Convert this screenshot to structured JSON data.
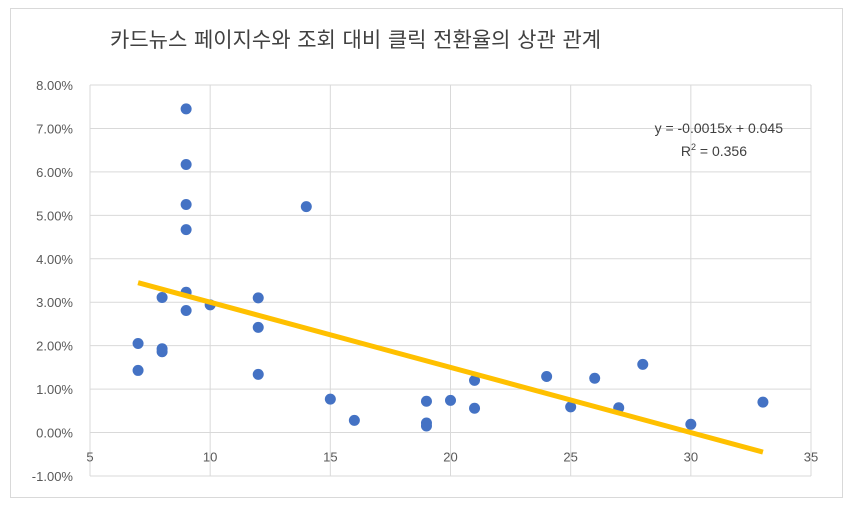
{
  "chart_data": {
    "type": "scatter",
    "title": "카드뉴스 페이지수와 조회 대비 클릭 전환율의 상관 관계",
    "xlabel": "",
    "ylabel": "",
    "xlim": [
      5,
      35
    ],
    "ylim": [
      -0.01,
      0.08
    ],
    "x_ticks": [
      5,
      10,
      15,
      20,
      25,
      30,
      35
    ],
    "x_tick_labels": [
      "5",
      "10",
      "15",
      "20",
      "25",
      "30",
      "35"
    ],
    "y_ticks": [
      -0.01,
      0,
      0.01,
      0.02,
      0.03,
      0.04,
      0.05,
      0.06,
      0.07,
      0.08
    ],
    "y_tick_labels": [
      "-1.00%",
      "0.00%",
      "1.00%",
      "2.00%",
      "3.00%",
      "4.00%",
      "5.00%",
      "6.00%",
      "7.00%",
      "8.00%"
    ],
    "grid": "vertical and horizontal",
    "legend": "none",
    "point_color": "#4472C4",
    "trendline_color": "#FFC000",
    "points": [
      {
        "x": 7,
        "y": 0.0205
      },
      {
        "x": 7,
        "y": 0.0143
      },
      {
        "x": 8,
        "y": 0.0311
      },
      {
        "x": 8,
        "y": 0.0193
      },
      {
        "x": 8,
        "y": 0.0186
      },
      {
        "x": 9,
        "y": 0.0745
      },
      {
        "x": 9,
        "y": 0.0617
      },
      {
        "x": 9,
        "y": 0.0525
      },
      {
        "x": 9,
        "y": 0.0467
      },
      {
        "x": 9,
        "y": 0.0323
      },
      {
        "x": 9,
        "y": 0.0281
      },
      {
        "x": 10,
        "y": 0.0294
      },
      {
        "x": 12,
        "y": 0.031
      },
      {
        "x": 12,
        "y": 0.0242
      },
      {
        "x": 12,
        "y": 0.0134
      },
      {
        "x": 14,
        "y": 0.052
      },
      {
        "x": 15,
        "y": 0.0077
      },
      {
        "x": 16,
        "y": 0.0028
      },
      {
        "x": 19,
        "y": 0.0072
      },
      {
        "x": 19,
        "y": 0.0022
      },
      {
        "x": 19,
        "y": 0.0015
      },
      {
        "x": 20,
        "y": 0.0074
      },
      {
        "x": 21,
        "y": 0.012
      },
      {
        "x": 21,
        "y": 0.0056
      },
      {
        "x": 24,
        "y": 0.0129
      },
      {
        "x": 25,
        "y": 0.0059
      },
      {
        "x": 26,
        "y": 0.0125
      },
      {
        "x": 27,
        "y": 0.0057
      },
      {
        "x": 28,
        "y": 0.0157
      },
      {
        "x": 30,
        "y": 0.0019
      },
      {
        "x": 33,
        "y": 0.007
      }
    ],
    "trendline": {
      "x_start": 7,
      "x_end": 33,
      "slope": -0.0015,
      "intercept": 0.045,
      "equation": "y = -0.0015x + 0.045",
      "r_squared_prefix": "R",
      "r_squared_sup": "2",
      "r_squared_value": " = 0.356"
    }
  }
}
